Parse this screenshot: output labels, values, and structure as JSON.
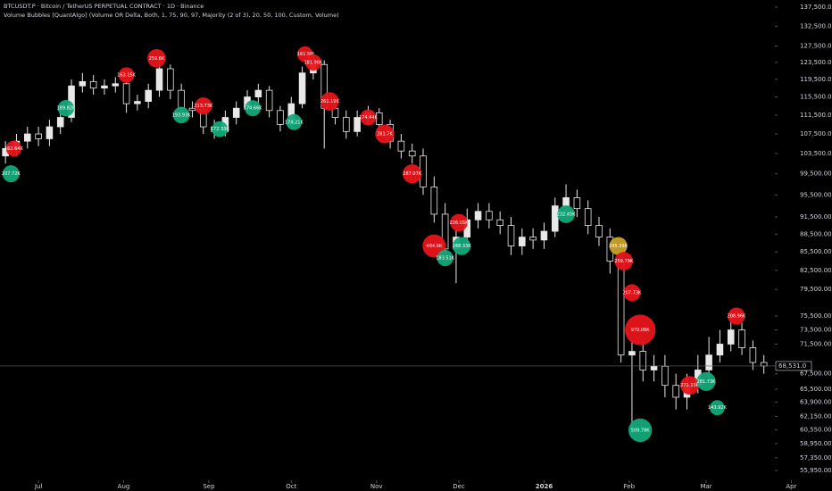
{
  "chart_data": {
    "type": "candlestick",
    "title": "BTCUSDT.P · Bitcoin / TetherUS PERPETUAL CONTRACT · 1D · Binance",
    "subtitle": "Volume Bubbles [QuantAlgo] (Volume OR Delta, Both, 1, 75, 90, 97, Majority (2 of 3), 20, 50, 100, Custom, Volume)",
    "log_scale": true,
    "candle_color": "#e8e8e8",
    "last_price_label": "68,531.0",
    "x": [
      -12,
      -8,
      -4,
      0,
      4,
      8,
      12,
      16,
      20,
      24,
      28,
      32,
      36,
      40,
      44,
      48,
      52,
      56,
      60,
      64,
      68,
      72,
      76,
      80,
      84,
      88,
      92,
      96,
      100,
      104,
      108,
      112,
      116,
      120,
      124,
      128,
      132,
      136,
      140,
      144,
      148,
      152,
      156,
      160,
      164,
      168,
      172,
      176,
      180,
      184,
      188,
      192,
      196,
      200,
      204,
      208,
      212,
      216,
      220,
      224,
      228,
      232,
      236,
      240,
      244,
      248,
      252,
      256,
      260,
      264
    ],
    "open": [
      103000,
      104500,
      106000,
      107500,
      106500,
      109000,
      111000,
      118000,
      119000,
      117500,
      118000,
      118500,
      114000,
      114500,
      117000,
      122000,
      117000,
      113000,
      112500,
      109000,
      108000,
      111000,
      113000,
      115500,
      117000,
      112500,
      109500,
      114000,
      121000,
      123000,
      113000,
      111000,
      108000,
      111000,
      112000,
      109500,
      106000,
      104000,
      103000,
      97000,
      92000,
      86000,
      88000,
      91000,
      92500,
      91000,
      90000,
      86500,
      88000,
      87500,
      89000,
      93500,
      95000,
      93000,
      90000,
      88000,
      84000,
      70000,
      70500,
      68000,
      68500,
      66000,
      64500,
      66000,
      68000,
      70000,
      71500,
      73500,
      71000,
      69000
    ],
    "high": [
      106000,
      107500,
      109000,
      109000,
      110500,
      112500,
      119500,
      121000,
      120500,
      119500,
      120000,
      119500,
      116000,
      118500,
      124500,
      123000,
      118500,
      114500,
      114000,
      110500,
      112500,
      114500,
      117000,
      118500,
      118000,
      113500,
      115500,
      122500,
      126000,
      124000,
      114500,
      112500,
      112500,
      113500,
      113000,
      110500,
      107500,
      105500,
      104500,
      99000,
      94000,
      89500,
      93000,
      94000,
      94000,
      92500,
      91500,
      89500,
      89500,
      90500,
      95000,
      97500,
      96500,
      94500,
      91500,
      89500,
      85500,
      72000,
      72000,
      70000,
      70000,
      67500,
      67500,
      70000,
      72500,
      73500,
      76000,
      74500,
      72000,
      70000
    ],
    "low": [
      101500,
      103000,
      104500,
      105000,
      105000,
      107500,
      110000,
      116500,
      116000,
      116000,
      116500,
      112000,
      112500,
      113000,
      115500,
      115000,
      111500,
      111000,
      107500,
      106500,
      107000,
      109500,
      112000,
      114000,
      111000,
      108000,
      108500,
      113000,
      119500,
      104500,
      109500,
      106500,
      107000,
      109500,
      108000,
      104500,
      102500,
      101500,
      95500,
      90500,
      84500,
      80500,
      86500,
      89500,
      89500,
      88500,
      85000,
      85000,
      86000,
      86000,
      88000,
      92000,
      91500,
      88500,
      86500,
      82000,
      69000,
      60000,
      66500,
      66500,
      64500,
      63000,
      63000,
      65000,
      67000,
      69000,
      70500,
      70000,
      68000,
      67500
    ],
    "close": [
      104500,
      106000,
      107500,
      106500,
      109000,
      111000,
      118000,
      119000,
      117500,
      118000,
      118500,
      114000,
      114500,
      117000,
      122000,
      117000,
      113000,
      112500,
      109000,
      108000,
      111000,
      113000,
      115500,
      117000,
      112500,
      109500,
      114000,
      121000,
      123000,
      113000,
      111000,
      108000,
      111000,
      112000,
      109500,
      106000,
      104000,
      103000,
      97000,
      92000,
      86000,
      88000,
      91000,
      92500,
      91000,
      90000,
      86500,
      88000,
      87500,
      89000,
      93500,
      95000,
      93000,
      90000,
      88000,
      84000,
      70000,
      70500,
      68000,
      68500,
      66000,
      64500,
      66000,
      68000,
      70000,
      71500,
      73500,
      71000,
      69000,
      68531
    ],
    "bubbles": {
      "x": [
        -10,
        -9,
        10,
        32,
        43,
        52,
        60,
        66,
        78,
        93,
        97,
        100,
        106,
        120,
        126,
        136,
        144,
        148,
        153,
        154,
        192,
        211,
        213,
        216,
        219,
        219,
        237,
        243,
        247,
        254
      ],
      "y": [
        99500,
        104500,
        113000,
        120500,
        124500,
        111500,
        113500,
        108500,
        113000,
        110000,
        125500,
        123500,
        114500,
        111000,
        107500,
        99500,
        86500,
        84500,
        90500,
        86500,
        92000,
        86500,
        84000,
        79000,
        73500,
        60500,
        66000,
        66500,
        63200,
        75500
      ],
      "values": [
        207720,
        162640,
        189820,
        163150,
        259600,
        193930,
        213730,
        172330,
        174660,
        174210,
        161500,
        181960,
        261190,
        174440,
        281700,
        287070,
        484900,
        183510,
        226050,
        248330,
        232450,
        245390,
        259790,
        207730,
        979060,
        509780,
        272150,
        281730,
        143920,
        208960
      ],
      "value_labels": [
        "207.72K",
        "162.64K",
        "189.82K",
        "163.15K",
        "259.6K",
        "193.93K",
        "213.73K",
        "172.33K",
        "174.66K",
        "174.21K",
        "161.5K",
        "181.96K",
        "261.19K",
        "174.44K",
        "281.7K",
        "287.07K",
        "484.9K",
        "183.51K",
        "226.05K",
        "248.33K",
        "232.45K",
        "245.39K",
        "259.79K",
        "207.73K",
        "979.06K",
        "509.78K",
        "272.15K",
        "281.73K",
        "143.92K",
        "208.96K"
      ],
      "colors": [
        "#13a87a",
        "#e8141a",
        "#13a87a",
        "#e8141a",
        "#e8141a",
        "#13a87a",
        "#e8141a",
        "#13a87a",
        "#13a87a",
        "#13a87a",
        "#e8141a",
        "#e8141a",
        "#e8141a",
        "#e8141a",
        "#e8141a",
        "#e8141a",
        "#e8141a",
        "#13a87a",
        "#e8141a",
        "#13a87a",
        "#13a87a",
        "#c9a227",
        "#e8141a",
        "#e8141a",
        "#e8141a",
        "#13a87a",
        "#e8141a",
        "#13a87a",
        "#13a87a",
        "#e8141a"
      ]
    },
    "xlim": [
      -14,
      268
    ],
    "ylim": [
      54900,
      139400
    ],
    "xticks": [
      {
        "value": 0,
        "label": "Jul"
      },
      {
        "value": 31,
        "label": "Aug"
      },
      {
        "value": 62,
        "label": "Sep"
      },
      {
        "value": 92,
        "label": "Oct"
      },
      {
        "value": 123,
        "label": "Nov"
      },
      {
        "value": 153,
        "label": "Dec"
      },
      {
        "value": 184,
        "label": "2026"
      },
      {
        "value": 215,
        "label": "Feb"
      },
      {
        "value": 243,
        "label": "Mar"
      },
      {
        "value": 274,
        "label": "Apr"
      }
    ],
    "yticks": [
      {
        "value": 137500,
        "label": "137,500.00"
      },
      {
        "value": 132500,
        "label": "132,500.00"
      },
      {
        "value": 127500,
        "label": "127,500.00"
      },
      {
        "value": 123500,
        "label": "123,500.00"
      },
      {
        "value": 119500,
        "label": "119,500.00"
      },
      {
        "value": 115500,
        "label": "115,500.00"
      },
      {
        "value": 111500,
        "label": "111,500.00"
      },
      {
        "value": 107500,
        "label": "107,500.00"
      },
      {
        "value": 103500,
        "label": "103,500.00"
      },
      {
        "value": 99500,
        "label": "99,500.00"
      },
      {
        "value": 95500,
        "label": "95,500.00"
      },
      {
        "value": 91500,
        "label": "91,500.00"
      },
      {
        "value": 88500,
        "label": "88,500.00"
      },
      {
        "value": 85500,
        "label": "85,500.00"
      },
      {
        "value": 82500,
        "label": "82,500.00"
      },
      {
        "value": 79500,
        "label": "79,500.00"
      },
      {
        "value": 75500,
        "label": "75,500.00"
      },
      {
        "value": 73500,
        "label": "73,500.00"
      },
      {
        "value": 71500,
        "label": "71,500.00"
      },
      {
        "value": 67500,
        "label": "67,500.00"
      },
      {
        "value": 65500,
        "label": "65,500.00"
      },
      {
        "value": 63900,
        "label": "63,900.00"
      },
      {
        "value": 62150,
        "label": "62,150.00"
      },
      {
        "value": 60550,
        "label": "60,550.00"
      },
      {
        "value": 58950,
        "label": "58,950.00"
      },
      {
        "value": 57350,
        "label": "57,350.00"
      },
      {
        "value": 55950,
        "label": "55,950.00"
      }
    ]
  }
}
